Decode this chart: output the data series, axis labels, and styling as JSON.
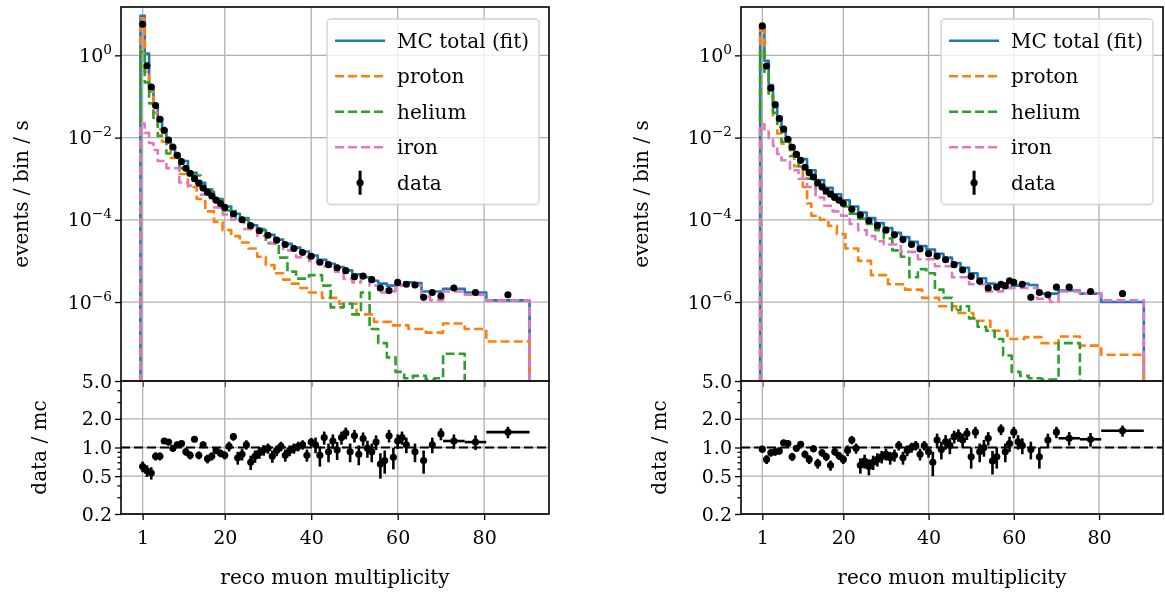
{
  "chart_data": [
    {
      "type": "step",
      "ylabel": "events / bin / s",
      "xlim": [
        -4,
        95
      ],
      "ylim": [
        1.2e-08,
        15
      ],
      "xticks": [
        1,
        20,
        40,
        60,
        80
      ],
      "yticks": [
        {
          "value": 1,
          "label": "10$^{0}$"
        },
        {
          "value": 0.01,
          "label": "10$^{−2}$"
        },
        {
          "value": 0.0001,
          "label": "10$^{−4}$"
        },
        {
          "value": 1e-06,
          "label": "10$^{−6}$"
        }
      ],
      "log": "y",
      "grid": true,
      "tick_labels": "y",
      "legend": "top right",
      "series": [
        {
          "name": "MC total (fit)",
          "color": "#1f77b4",
          "line_style": "solid",
          "x": [
            0.5,
            1.5,
            2.5,
            3.5,
            4.5,
            5.5,
            6.5,
            7.5,
            8.5,
            9.5,
            11.5,
            13.5,
            15.5,
            17.5,
            19.5,
            21.5,
            23.5,
            25.5,
            27.5,
            29.5,
            31.5,
            33.5,
            35.5,
            37.5,
            39.5,
            41.5,
            43.5,
            45.5,
            47.5,
            49.5,
            51.5,
            53.5,
            55.5,
            57.5,
            59.5,
            61.5,
            63.5,
            65.5,
            70.5,
            75.5,
            80.5,
            90.5
          ],
          "values": [
            9.1,
            1.1,
            0.18,
            0.063,
            0.03,
            0.016,
            0.0089,
            0.006,
            0.0038,
            0.0027,
            0.0014,
            0.00079,
            0.00048,
            0.00032,
            0.00021,
            0.00014,
            0.0001,
            7.4e-05,
            5.6e-05,
            4.3e-05,
            3.3e-05,
            2.6e-05,
            2.1e-05,
            1.7e-05,
            1.35e-05,
            1.07e-05,
            8.5e-06,
            7.1e-06,
            5.9e-06,
            4.7e-06,
            4e-06,
            3.3e-06,
            2.8e-06,
            2.5e-06,
            2.6e-06,
            3e-06,
            2.9e-06,
            1.8e-06,
            2.1e-06,
            1.7e-06,
            1.1e-06,
            1.1e-06
          ]
        },
        {
          "name": "proton",
          "color": "#ff7f0e",
          "line_style": "dashed",
          "x": [
            0.5,
            1.5,
            2.5,
            3.5,
            4.5,
            5.5,
            7.5,
            9.5,
            11.5,
            13.5,
            15.5,
            17.5,
            19.5,
            21.5,
            23.5,
            25.5,
            27.5,
            29.5,
            31.5,
            33.5,
            35.5,
            37.5,
            39.5,
            42.5,
            46.5,
            50.5,
            54.5,
            58.5,
            62.5,
            66.5,
            70.5,
            75.5,
            80.5,
            90.5
          ],
          "values": [
            7.9,
            0.4,
            0.13,
            0.04,
            0.016,
            0.0079,
            0.0032,
            0.0013,
            0.00063,
            0.00032,
            0.00016,
            8.9e-05,
            5.6e-05,
            4e-05,
            2.8e-05,
            2e-05,
            1.26e-05,
            7.9e-06,
            5e-06,
            3.5e-06,
            2.8e-06,
            2.2e-06,
            1.7e-06,
            1.26e-06,
            9.1e-07,
            5e-07,
            3.3e-07,
            2.7e-07,
            2.2e-07,
            1.8e-07,
            3e-07,
            2.2e-07,
            1.1e-07,
            1.1e-07
          ]
        },
        {
          "name": "helium",
          "color": "#2ca02c",
          "line_style": "dashed",
          "x": [
            0.5,
            1.5,
            2.5,
            3.5,
            4.5,
            6.5,
            9.5,
            11.5,
            14.5,
            17.5,
            19.5,
            22.5,
            25.5,
            29.5,
            32.5,
            34.5,
            36.5,
            39.5,
            42.5,
            44.5,
            47.5,
            49.5,
            51.5,
            53.5,
            55.5,
            57.5,
            59.5,
            61.5,
            63.5,
            66.5,
            68.5,
            70.5,
            75.5
          ],
          "values": [
            1.23,
            0.22,
            0.068,
            0.03,
            0.011,
            0.0041,
            0.0018,
            0.0012,
            0.00055,
            0.0003,
            0.00017,
            0.00011,
            6e-05,
            2.7e-05,
            1.2e-05,
            5.5e-06,
            3.7e-06,
            4.5e-06,
            2.5e-06,
            7.4e-07,
            9.1e-07,
            5e-07,
            1.7e-06,
            2.2e-07,
            1e-07,
            4.5e-08,
            2e-08,
            1.4e-08,
            1.6e-08,
            1.3e-08,
            1.4e-08,
            5.5e-08,
            5.5e-08
          ]
        },
        {
          "name": "iron",
          "color": "#e377c2",
          "line_style": "dashed",
          "x": [
            0.5,
            1.5,
            2.5,
            3.5,
            4.5,
            6.5,
            9.5,
            11.5,
            14.5,
            17.5,
            19.5,
            21.5,
            24.5,
            27.5,
            30.5,
            33.5,
            36.5,
            39.5,
            42.5,
            45.5,
            47.5,
            49.5,
            51.5,
            53.5,
            55.5,
            57.5,
            59.5,
            62.5,
            65.5,
            67.5,
            70.5,
            75.5,
            80.5,
            90.5
          ],
          "values": [
            0.022,
            0.013,
            0.0074,
            0.005,
            0.0027,
            0.0018,
            0.00081,
            0.00068,
            0.00041,
            0.0002,
            0.000135,
            0.0001,
            6e-05,
            4.1e-05,
            2.7e-05,
            1.8e-05,
            1.23e-05,
            1e-05,
            7.4e-06,
            5.5e-06,
            3.7e-06,
            3e-06,
            3.7e-06,
            2.5e-06,
            1.7e-06,
            1.8e-06,
            2.5e-06,
            2.5e-06,
            1.35e-06,
            1.1e-06,
            1.8e-06,
            1.5e-06,
            1.1e-06,
            1.1e-06
          ]
        },
        {
          "type": "scatter",
          "name": "data",
          "color": "#000000",
          "marker": "circle",
          "x": [
            1,
            2,
            3,
            4,
            5,
            6,
            7,
            8,
            9,
            10,
            11,
            12,
            13,
            14,
            15,
            16,
            17,
            18,
            19,
            20,
            22,
            24,
            26,
            28,
            30,
            32,
            34,
            36,
            38,
            40,
            42,
            44,
            46,
            48,
            50,
            52,
            54,
            56,
            58,
            60,
            62,
            64,
            66,
            68,
            70,
            73,
            78,
            85.5
          ],
          "values": [
            5.7,
            0.56,
            0.17,
            0.06,
            0.028,
            0.015,
            0.0087,
            0.0059,
            0.0037,
            0.0026,
            0.0018,
            0.00135,
            0.001,
            0.00078,
            0.00059,
            0.00047,
            0.00038,
            0.0003,
            0.00025,
            0.0002,
            0.00014,
            0.0001,
            7.2e-05,
            5.4e-05,
            4.2e-05,
            3.2e-05,
            2.5e-05,
            2e-05,
            1.6e-05,
            1.3e-05,
            9.3e-06,
            8.1e-06,
            6.8e-06,
            5.8e-06,
            4.1e-06,
            4.3e-06,
            3.5e-06,
            2.2e-06,
            1.9e-06,
            3e-06,
            2.7e-06,
            2.6e-06,
            1.3e-06,
            1.7e-06,
            1.4e-06,
            2.2e-06,
            1.7e-06,
            1.5e-06
          ]
        }
      ]
    },
    {
      "type": "scatter",
      "xlabel": "reco muon multiplicity",
      "ylabel": "data / mc",
      "xlim": [
        -4,
        95
      ],
      "ylim": [
        0.2,
        5
      ],
      "xticks": [
        1,
        20,
        40,
        60,
        80
      ],
      "yticks": [
        {
          "value": 0.2,
          "label": "0.2"
        },
        {
          "value": 0.3,
          "label": null
        },
        {
          "value": 0.4,
          "label": null
        },
        {
          "value": 0.5,
          "label": "0.5"
        },
        {
          "value": 0.6,
          "label": null
        },
        {
          "value": 0.7,
          "label": null
        },
        {
          "value": 0.8,
          "label": null
        },
        {
          "value": 0.9,
          "label": null
        },
        {
          "value": 1,
          "label": "1.0"
        },
        {
          "value": 2,
          "label": "2.0"
        },
        {
          "value": 3,
          "label": null
        },
        {
          "value": 4,
          "label": null
        },
        {
          "value": 5,
          "label": "5.0"
        }
      ],
      "log": "y",
      "grid": true,
      "ref_lines": [
        {
          "axis": "y",
          "value": 1,
          "color": "#000000",
          "line_style": "dashed"
        }
      ],
      "series": [
        {
          "color": "#000000",
          "marker": "circle",
          "x": [
            1,
            2,
            3,
            4,
            5,
            6,
            7,
            8,
            9,
            10,
            11,
            12,
            13,
            14,
            15,
            16,
            17,
            18,
            19,
            20,
            21,
            22,
            23,
            24,
            25,
            26,
            27,
            28,
            29,
            30,
            31,
            32,
            33,
            34,
            35,
            36,
            37,
            38,
            39,
            40,
            41,
            42,
            43,
            44,
            45,
            46,
            47,
            48,
            49,
            50,
            51,
            52,
            53,
            54,
            55,
            56,
            57,
            58,
            59,
            60,
            61,
            62,
            64,
            66,
            68,
            70,
            73,
            78,
            85.5
          ],
          "values": [
            0.63,
            0.57,
            0.54,
            0.81,
            0.81,
            1.17,
            1.14,
            0.98,
            1.07,
            1.1,
            0.9,
            0.83,
            1.22,
            0.83,
            1.07,
            0.76,
            0.81,
            0.93,
            0.87,
            0.83,
            1.03,
            1.3,
            0.78,
            0.85,
            1.07,
            0.7,
            0.81,
            0.88,
            0.94,
            0.98,
            0.81,
            0.93,
            1.03,
            0.83,
            0.93,
            0.98,
            1.03,
            1.07,
            0.83,
            1.14,
            1.07,
            0.83,
            1.27,
            0.9,
            1.17,
            0.94,
            1.27,
            1.42,
            0.9,
            1.33,
            0.85,
            1.24,
            0.98,
            0.9,
            1.14,
            0.67,
            0.73,
            1.33,
            0.79,
            1.17,
            1.27,
            1.07,
            0.9,
            0.73,
            1.07,
            1.39,
            1.17,
            1.14,
            1.45
          ],
          "errors": [
            0.08,
            0.08,
            0.08,
            0.08,
            0.08,
            0.08,
            0.08,
            0.08,
            0.08,
            0.08,
            0.08,
            0.08,
            0.08,
            0.08,
            0.08,
            0.08,
            0.08,
            0.08,
            0.08,
            0.08,
            0.12,
            0.12,
            0.12,
            0.12,
            0.12,
            0.12,
            0.12,
            0.12,
            0.12,
            0.12,
            0.12,
            0.12,
            0.12,
            0.12,
            0.12,
            0.12,
            0.12,
            0.12,
            0.12,
            0.12,
            0.2,
            0.2,
            0.2,
            0.2,
            0.2,
            0.2,
            0.2,
            0.2,
            0.2,
            0.2,
            0.2,
            0.2,
            0.2,
            0.2,
            0.2,
            0.2,
            0.2,
            0.2,
            0.2,
            0.2,
            0.2,
            0.2,
            0.2,
            0.2,
            0.2,
            0.2,
            0.2,
            0.2,
            0.2
          ],
          "xerrors": [
            null,
            null,
            null,
            null,
            null,
            null,
            null,
            null,
            null,
            null,
            null,
            null,
            null,
            null,
            null,
            null,
            null,
            null,
            null,
            null,
            null,
            null,
            null,
            null,
            null,
            null,
            null,
            null,
            null,
            null,
            null,
            null,
            null,
            null,
            null,
            null,
            null,
            null,
            null,
            null,
            null,
            null,
            null,
            null,
            null,
            null,
            null,
            null,
            null,
            null,
            null,
            null,
            null,
            null,
            null,
            null,
            null,
            null,
            null,
            null,
            null,
            null,
            null,
            null,
            null,
            null,
            [
              70.5,
              75.5
            ],
            [
              75.5,
              80.5
            ],
            [
              80.5,
              90.5
            ]
          ]
        }
      ]
    },
    {
      "type": "step",
      "ylabel": "events / bin / s",
      "xlim": [
        -4,
        95
      ],
      "ylim": [
        1.2e-08,
        15
      ],
      "xticks": [
        1,
        20,
        40,
        60,
        80
      ],
      "yticks": [
        {
          "value": 1,
          "label": "10$^{0}$"
        },
        {
          "value": 0.01,
          "label": "10$^{−2}$"
        },
        {
          "value": 0.0001,
          "label": "10$^{−4}$"
        },
        {
          "value": 1e-06,
          "label": "10$^{−6}$"
        }
      ],
      "log": "y",
      "grid": true,
      "tick_labels": "y",
      "legend": "top right",
      "series": [
        {
          "name": "MC total (fit)",
          "color": "#1f77b4",
          "line_style": "solid",
          "x": [
            0.5,
            1.5,
            2.5,
            3.5,
            4.5,
            5.5,
            6.5,
            7.5,
            8.5,
            9.5,
            11.5,
            13.5,
            15.5,
            17.5,
            19.5,
            21.5,
            23.5,
            25.5,
            27.5,
            29.5,
            31.5,
            33.5,
            35.5,
            37.5,
            39.5,
            41.5,
            43.5,
            45.5,
            47.5,
            49.5,
            51.5,
            53.5,
            55.5,
            57.5,
            59.5,
            61.5,
            63.5,
            65.5,
            70.5,
            75.5,
            80.5,
            90.5
          ],
          "values": [
            5,
            0.74,
            0.19,
            0.071,
            0.032,
            0.017,
            0.0095,
            0.0063,
            0.0042,
            0.003,
            0.0016,
            0.00093,
            0.0006,
            0.00042,
            0.0003,
            0.00021,
            0.00015,
            0.00011,
            8.3e-05,
            6.3e-05,
            4.8e-05,
            3.8e-05,
            2.9e-05,
            2.3e-05,
            1.9e-05,
            1.5e-05,
            1.2e-05,
            8.9e-06,
            6.8e-06,
            5e-06,
            3.8e-06,
            2.8e-06,
            2.4e-06,
            2.2e-06,
            2.5e-06,
            2.8e-06,
            2.6e-06,
            1.6e-06,
            1.9e-06,
            1.6e-06,
            1e-06,
            1e-06
          ]
        },
        {
          "name": "proton",
          "color": "#ff7f0e",
          "line_style": "dashed",
          "x": [
            0.5,
            1.5,
            2.5,
            3.5,
            4.5,
            5.5,
            7.5,
            8.5,
            10.5,
            11.5,
            12.5,
            14.5,
            16.5,
            18.5,
            20.5,
            23.5,
            26.5,
            30.5,
            34.5,
            38.5,
            42.5,
            46.5,
            50.5,
            54.5,
            58.5,
            62.5,
            66.5,
            70.5,
            75.5,
            80.5,
            90.5
          ],
          "values": [
            4,
            0.4,
            0.1,
            0.032,
            0.0126,
            0.0071,
            0.004,
            0.002,
            0.00063,
            0.00025,
            0.000126,
            0.0001,
            7.1e-05,
            4.5e-05,
            2e-05,
            1e-05,
            4.5e-06,
            2.7e-06,
            2e-06,
            1.26e-06,
            7.9e-07,
            5.4e-07,
            3.5e-07,
            2e-07,
            1.26e-07,
            1.4e-07,
            1e-07,
            1.45e-07,
            8.7e-08,
            5.2e-08,
            5.2e-08
          ]
        },
        {
          "name": "helium",
          "color": "#2ca02c",
          "line_style": "dashed",
          "x": [
            0.5,
            1.5,
            2.5,
            3.5,
            4.5,
            5.5,
            7.5,
            9.5,
            11.5,
            13.5,
            15.5,
            17.5,
            19.5,
            21.5,
            23.5,
            25.5,
            27.5,
            29.5,
            31.5,
            33.5,
            35.5,
            37.5,
            39.5,
            41.5,
            43.5,
            45.5,
            47.5,
            49.5,
            51.5,
            53.5,
            55.5,
            57.5,
            59.5,
            61.5,
            63.5,
            66.5,
            70.5,
            75.5
          ],
          "values": [
            1.35,
            0.4,
            0.11,
            0.04,
            0.018,
            0.0079,
            0.0035,
            0.002,
            0.001,
            0.00056,
            0.0004,
            0.00032,
            0.00021,
            0.00014,
            0.000107,
            7.9e-05,
            5.6e-05,
            3.5e-05,
            1.8e-05,
            1.26e-05,
            4e-06,
            6.3e-06,
            5e-06,
            2e-06,
            1.26e-06,
            6.3e-07,
            7.9e-07,
            4e-07,
            2.5e-07,
            2e-07,
            1.26e-07,
            5e-08,
            2e-08,
            1.6e-08,
            1.4e-08,
            1.3e-08,
            1e-07,
            1e-07
          ]
        },
        {
          "name": "iron",
          "color": "#e377c2",
          "line_style": "dashed",
          "x": [
            0.5,
            1.5,
            2.5,
            3.5,
            4.5,
            5.5,
            7.5,
            9.5,
            11.5,
            13.5,
            15.5,
            17.5,
            19.5,
            21.5,
            23.5,
            25.5,
            27.5,
            29.5,
            33.5,
            37.5,
            41.5,
            45.5,
            49.5,
            53.5,
            57.5,
            61.5,
            65.5,
            68.5,
            70.5,
            75.5,
            80.5,
            90.5
          ],
          "values": [
            0.021,
            0.014,
            0.0089,
            0.0063,
            0.004,
            0.0028,
            0.0016,
            0.001,
            0.00063,
            0.00035,
            0.00022,
            0.00016,
            0.000126,
            7.9e-05,
            5.6e-05,
            4e-05,
            3e-05,
            2.5e-05,
            1.66e-05,
            1.1e-05,
            7.4e-06,
            4e-06,
            2.7e-06,
            1.8e-06,
            2.2e-06,
            2.2e-06,
            1.2e-06,
            1e-06,
            1.8e-06,
            1.6e-06,
            1.1e-06,
            1.1e-06
          ]
        },
        {
          "type": "scatter",
          "name": "data",
          "color": "#000000",
          "marker": "circle",
          "x": [
            1,
            2,
            3,
            4,
            5,
            6,
            7,
            8,
            9,
            10,
            11,
            12,
            13,
            14,
            15,
            16,
            17,
            18,
            19,
            20,
            22,
            24,
            26,
            28,
            30,
            32,
            34,
            36,
            38,
            40,
            42,
            44,
            46,
            48,
            50,
            52,
            54,
            56,
            57,
            58,
            59,
            60,
            62,
            64,
            66,
            68,
            70,
            73,
            78,
            85.5
          ],
          "values": [
            5.2,
            0.55,
            0.16,
            0.063,
            0.029,
            0.016,
            0.0091,
            0.0058,
            0.0039,
            0.0028,
            0.0019,
            0.0014,
            0.0011,
            0.00079,
            0.00063,
            0.0005,
            0.00042,
            0.00035,
            0.0003,
            0.00025,
            0.00018,
            0.00013,
            9.5e-05,
            7.2e-05,
            5.6e-05,
            4.3e-05,
            3.3e-05,
            2.5e-05,
            1.95e-05,
            1.5e-05,
            1.3e-05,
            1.07e-05,
            8.1e-06,
            6e-06,
            4.2e-06,
            3.2e-06,
            2.2e-06,
            2.3e-06,
            2.7e-06,
            2.5e-06,
            3.3e-06,
            3e-06,
            2.7e-06,
            1.3e-06,
            1.7e-06,
            1.5e-06,
            2.3e-06,
            2.3e-06,
            1.8e-06,
            1.6e-06
          ]
        }
      ]
    },
    {
      "type": "scatter",
      "xlabel": "reco muon multiplicity",
      "ylabel": "data / mc",
      "xlim": [
        -4,
        95
      ],
      "ylim": [
        0.2,
        5
      ],
      "xticks": [
        1,
        20,
        40,
        60,
        80
      ],
      "yticks": [
        {
          "value": 0.2,
          "label": "0.2"
        },
        {
          "value": 0.3,
          "label": null
        },
        {
          "value": 0.4,
          "label": null
        },
        {
          "value": 0.5,
          "label": "0.5"
        },
        {
          "value": 0.6,
          "label": null
        },
        {
          "value": 0.7,
          "label": null
        },
        {
          "value": 0.8,
          "label": null
        },
        {
          "value": 0.9,
          "label": null
        },
        {
          "value": 1,
          "label": "1.0"
        },
        {
          "value": 2,
          "label": "2.0"
        },
        {
          "value": 3,
          "label": null
        },
        {
          "value": 4,
          "label": null
        },
        {
          "value": 5,
          "label": "5.0"
        }
      ],
      "log": "y",
      "grid": true,
      "ref_lines": [
        {
          "axis": "y",
          "value": 1,
          "color": "#000000",
          "line_style": "dashed"
        }
      ],
      "series": [
        {
          "color": "#000000",
          "marker": "circle",
          "x": [
            1,
            2,
            3,
            4,
            5,
            6,
            7,
            8,
            9,
            10,
            11,
            12,
            13,
            14,
            15,
            16,
            17,
            18,
            19,
            20,
            21,
            22,
            23,
            24,
            25,
            26,
            27,
            28,
            29,
            30,
            31,
            32,
            33,
            34,
            35,
            36,
            37,
            38,
            39,
            40,
            41,
            42,
            43,
            44,
            45,
            46,
            47,
            48,
            49,
            50,
            51,
            52,
            53,
            54,
            55,
            56,
            57,
            58,
            59,
            60,
            61,
            62,
            64,
            66,
            68,
            70,
            73,
            78,
            85.5
          ],
          "values": [
            0.96,
            0.75,
            0.88,
            0.9,
            0.92,
            1.12,
            1.1,
            0.8,
            0.98,
            1.08,
            0.85,
            0.75,
            0.97,
            0.68,
            0.88,
            0.8,
            0.65,
            0.9,
            0.82,
            0.75,
            0.93,
            1.2,
            0.98,
            0.65,
            0.72,
            0.63,
            0.7,
            0.75,
            0.8,
            0.85,
            0.78,
            0.83,
            1.05,
            0.78,
            0.93,
            1.0,
            1.05,
            0.85,
            1.05,
            0.9,
            0.7,
            1.2,
            0.95,
            1.15,
            1.05,
            1.3,
            1.35,
            1.2,
            1.4,
            0.8,
            1.45,
            0.9,
            1.0,
            1.25,
            0.72,
            0.8,
            1.55,
            0.9,
            1.1,
            1.45,
            1.15,
            1.05,
            0.95,
            0.8,
            1.2,
            1.45,
            1.25,
            1.22,
            1.5
          ],
          "errors": [
            0.08,
            0.08,
            0.08,
            0.08,
            0.08,
            0.08,
            0.08,
            0.08,
            0.08,
            0.08,
            0.08,
            0.08,
            0.08,
            0.08,
            0.08,
            0.08,
            0.08,
            0.08,
            0.08,
            0.08,
            0.12,
            0.12,
            0.12,
            0.12,
            0.12,
            0.12,
            0.12,
            0.12,
            0.12,
            0.12,
            0.12,
            0.12,
            0.12,
            0.12,
            0.12,
            0.12,
            0.12,
            0.12,
            0.12,
            0.12,
            0.2,
            0.2,
            0.2,
            0.2,
            0.2,
            0.2,
            0.2,
            0.2,
            0.2,
            0.2,
            0.2,
            0.2,
            0.2,
            0.2,
            0.2,
            0.2,
            0.2,
            0.2,
            0.2,
            0.2,
            0.2,
            0.2,
            0.2,
            0.2,
            0.2,
            0.2,
            0.2,
            0.2,
            0.2
          ],
          "xerrors": [
            null,
            null,
            null,
            null,
            null,
            null,
            null,
            null,
            null,
            null,
            null,
            null,
            null,
            null,
            null,
            null,
            null,
            null,
            null,
            null,
            null,
            null,
            null,
            null,
            null,
            null,
            null,
            null,
            null,
            null,
            null,
            null,
            null,
            null,
            null,
            null,
            null,
            null,
            null,
            null,
            null,
            null,
            null,
            null,
            null,
            null,
            null,
            null,
            null,
            null,
            null,
            null,
            null,
            null,
            null,
            null,
            null,
            null,
            null,
            null,
            null,
            null,
            null,
            null,
            null,
            null,
            [
              70.5,
              75.5
            ],
            [
              75.5,
              80.5
            ],
            [
              80.5,
              90.5
            ]
          ]
        }
      ]
    }
  ]
}
